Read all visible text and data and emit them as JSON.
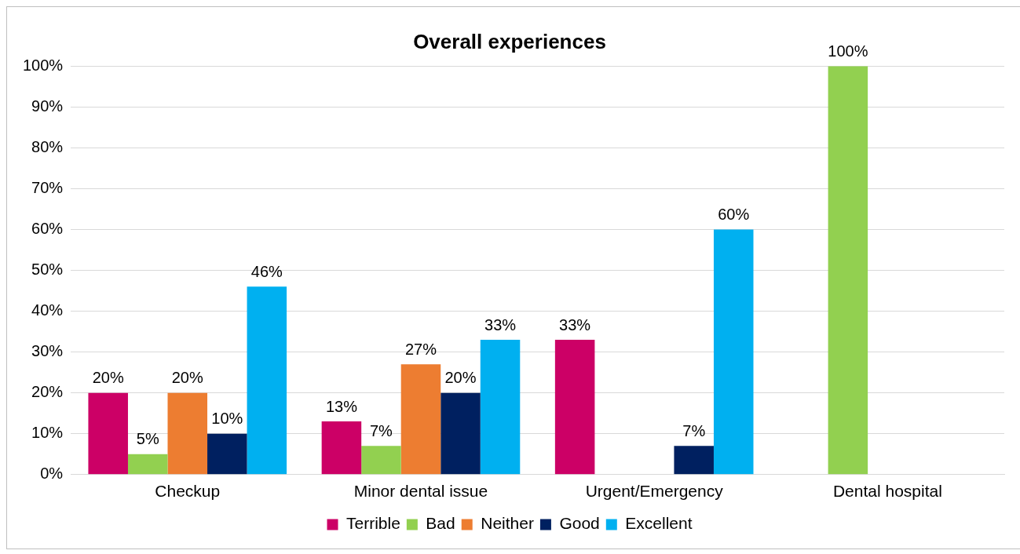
{
  "chart_data": {
    "type": "bar",
    "title": "Overall experiences",
    "categories": [
      "Checkup",
      "Minor dental issue",
      "Urgent/Emergency",
      "Dental hospital"
    ],
    "series": [
      {
        "name": "Terrible",
        "color": "#cc0066",
        "values": [
          20,
          13,
          33,
          null
        ],
        "value_labels": [
          "20%",
          "13%",
          "33%",
          null
        ]
      },
      {
        "name": "Bad",
        "color": "#92d050",
        "values": [
          5,
          7,
          null,
          100
        ],
        "value_labels": [
          "5%",
          "7%",
          null,
          "100%"
        ]
      },
      {
        "name": "Neither",
        "color": "#ed7d31",
        "values": [
          20,
          27,
          null,
          null
        ],
        "value_labels": [
          "20%",
          "27%",
          null,
          null
        ]
      },
      {
        "name": "Good",
        "color": "#002060",
        "values": [
          10,
          20,
          7,
          null
        ],
        "value_labels": [
          "10%",
          "20%",
          "7%",
          null
        ]
      },
      {
        "name": "Excellent",
        "color": "#00b0f0",
        "values": [
          46,
          33,
          60,
          null
        ],
        "value_labels": [
          "46%",
          "33%",
          "60%",
          null
        ]
      }
    ],
    "ylim": [
      0,
      100
    ],
    "yticks": [
      {
        "value": 0,
        "label": "0%"
      },
      {
        "value": 10,
        "label": "10%"
      },
      {
        "value": 20,
        "label": "20%"
      },
      {
        "value": 30,
        "label": "30%"
      },
      {
        "value": 40,
        "label": "40%"
      },
      {
        "value": 50,
        "label": "50%"
      },
      {
        "value": 60,
        "label": "60%"
      },
      {
        "value": 70,
        "label": "70%"
      },
      {
        "value": 80,
        "label": "80%"
      },
      {
        "value": 90,
        "label": "90%"
      },
      {
        "value": 100,
        "label": "100%"
      }
    ],
    "grid": "y",
    "legend": "bottom"
  }
}
